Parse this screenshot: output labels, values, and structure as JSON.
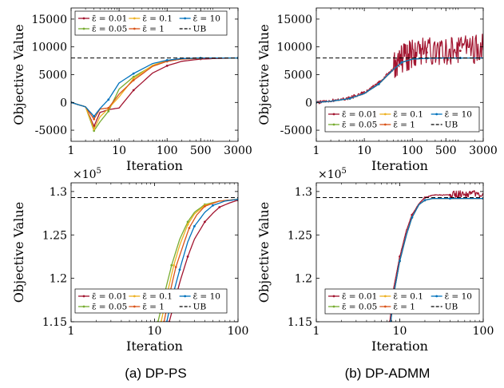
{
  "figure": {
    "captions": [
      "(a) DP-PS",
      "(b) DP-ADMM"
    ]
  },
  "legend_entries": [
    "ε̄ = 0.01",
    "ε̄ = 0.1",
    "ε̄ = 10",
    "ε̄ = 0.05",
    "ε̄ = 1",
    "UB"
  ],
  "colors": {
    "eps_0.01": "#a2142f",
    "eps_0.05": "#77ac30",
    "eps_0.1": "#edb120",
    "eps_1": "#d95319",
    "eps_10": "#0072bd",
    "ub": "#000000"
  },
  "chart_data": [
    {
      "type": "line",
      "panel": "top-left",
      "xlabel": "Iteration",
      "ylabel": "Objective Value",
      "x_scale": "log",
      "xlim": [
        1,
        3000
      ],
      "ylim": [
        -7000,
        17000
      ],
      "xticks": [
        1,
        10,
        100,
        500,
        3000
      ],
      "yticks": [
        -5000,
        0,
        5000,
        10000,
        15000
      ],
      "ytick_labels": [
        "-5000",
        "0",
        "5000",
        "10000",
        "15000"
      ],
      "legend": "top, 3 columns",
      "ub": 8000,
      "series": [
        {
          "name": "ε̄ = 0.01",
          "x": [
            1,
            2,
            3,
            4,
            6,
            10,
            20,
            50,
            100,
            200,
            500,
            1000,
            3000
          ],
          "y": [
            0,
            -800,
            -4300,
            -1800,
            -1300,
            -1000,
            2200,
            5300,
            6600,
            7400,
            7800,
            7900,
            8000
          ]
        },
        {
          "name": "ε̄ = 0.05",
          "x": [
            1,
            2,
            3,
            4,
            6,
            10,
            20,
            50,
            100,
            200,
            500,
            1000,
            3000
          ],
          "y": [
            0,
            -800,
            -5100,
            -3500,
            -1600,
            2400,
            4600,
            6600,
            7400,
            7800,
            7950,
            8000,
            8000
          ]
        },
        {
          "name": "ε̄ = 0.1",
          "x": [
            1,
            2,
            3,
            4,
            6,
            10,
            20,
            50,
            100,
            200,
            500,
            1000,
            3000
          ],
          "y": [
            0,
            -800,
            -4800,
            -2600,
            -1100,
            1000,
            4300,
            6700,
            7500,
            7800,
            7950,
            8000,
            8000
          ]
        },
        {
          "name": "ε̄ = 1",
          "x": [
            1,
            2,
            3,
            4,
            6,
            10,
            20,
            50,
            100,
            200,
            500,
            1000,
            3000
          ],
          "y": [
            0,
            -800,
            -3000,
            -1200,
            -1000,
            1500,
            4000,
            6500,
            7400,
            7800,
            7950,
            8000,
            8000
          ]
        },
        {
          "name": "ε̄ = 10",
          "x": [
            1,
            2,
            3,
            4,
            6,
            10,
            20,
            50,
            100,
            200,
            500,
            1000,
            3000
          ],
          "y": [
            0,
            -800,
            -2500,
            -1100,
            500,
            3500,
            5200,
            7000,
            7600,
            7900,
            8000,
            8000,
            8000
          ]
        }
      ]
    },
    {
      "type": "line",
      "panel": "top-right",
      "xlabel": "Iteration",
      "ylabel": "Objective Value",
      "x_scale": "log",
      "xlim": [
        1,
        3000
      ],
      "ylim": [
        -7000,
        17000
      ],
      "xticks": [
        1,
        10,
        100,
        500,
        3000
      ],
      "yticks": [
        -5000,
        0,
        5000,
        10000,
        15000
      ],
      "ytick_labels": [
        "-5000",
        "0",
        "5000",
        "10000",
        "15000"
      ],
      "legend": "bottom, 3 columns",
      "ub": 8000,
      "series": [
        {
          "name": "ε̄ = 0.01",
          "x": [
            1,
            2,
            5,
            10,
            20,
            40,
            60,
            100,
            200,
            500,
            1000,
            3000
          ],
          "y": [
            0,
            300,
            800,
            1800,
            3500,
            6000,
            7500,
            8500,
            9000,
            9200,
            9300,
            9400
          ],
          "noise": 2400
        },
        {
          "name": "ε̄ = 0.05",
          "x": [
            1,
            2,
            5,
            10,
            20,
            40,
            60,
            100,
            200,
            500,
            1000,
            3000
          ],
          "y": [
            0,
            200,
            700,
            1600,
            3300,
            5900,
            7200,
            7800,
            7950,
            8000,
            8000,
            8000
          ]
        },
        {
          "name": "ε̄ = 0.1",
          "x": [
            1,
            2,
            5,
            10,
            20,
            40,
            60,
            100,
            200,
            500,
            1000,
            3000
          ],
          "y": [
            0,
            200,
            700,
            1600,
            3300,
            5900,
            7200,
            7800,
            7950,
            8000,
            8000,
            8000
          ]
        },
        {
          "name": "ε̄ = 1",
          "x": [
            1,
            2,
            5,
            10,
            20,
            40,
            60,
            100,
            200,
            500,
            1000,
            3000
          ],
          "y": [
            0,
            200,
            700,
            1600,
            3300,
            5900,
            7200,
            7800,
            7950,
            8000,
            8000,
            8000
          ]
        },
        {
          "name": "ε̄ = 10",
          "x": [
            1,
            2,
            5,
            10,
            20,
            40,
            60,
            100,
            200,
            500,
            1000,
            3000
          ],
          "y": [
            0,
            200,
            700,
            1600,
            3300,
            5900,
            7200,
            7800,
            7950,
            8000,
            8000,
            8000
          ]
        }
      ]
    },
    {
      "type": "line",
      "panel": "bottom-left",
      "xlabel": "Iteration",
      "ylabel": "Objective Value",
      "x_scale": "log",
      "xlim": [
        1,
        100
      ],
      "ylim": [
        115000,
        131000
      ],
      "xticks": [
        1,
        10,
        100
      ],
      "yticks": [
        115000,
        120000,
        125000,
        130000
      ],
      "ytick_labels": [
        "1.15",
        "1.2",
        "1.25",
        "1.3"
      ],
      "y_multiplier": "×10",
      "y_exponent": "5",
      "legend": "bottom, 3 columns",
      "ub": 129300,
      "series": [
        {
          "name": "ε̄ = 0.01",
          "x": [
            15,
            20,
            25,
            30,
            40,
            50,
            60,
            80,
            100
          ],
          "y": [
            115000,
            119500,
            122500,
            124500,
            126500,
            127500,
            128200,
            128700,
            129000
          ]
        },
        {
          "name": "ε̄ = 0.05",
          "x": [
            11,
            13,
            16,
            20,
            25,
            30,
            40,
            60,
            100
          ],
          "y": [
            115000,
            118000,
            121500,
            124500,
            126500,
            127600,
            128500,
            128900,
            129100
          ]
        },
        {
          "name": "ε̄ = 0.1",
          "x": [
            12,
            14,
            17,
            20,
            25,
            30,
            40,
            60,
            100
          ],
          "y": [
            115000,
            118000,
            121500,
            123800,
            126200,
            127400,
            128400,
            128900,
            129100
          ]
        },
        {
          "name": "ε̄ = 1",
          "x": [
            13,
            15,
            18,
            22,
            26,
            32,
            40,
            60,
            100
          ],
          "y": [
            115000,
            118000,
            121300,
            123800,
            125800,
            127300,
            128300,
            128900,
            129100
          ]
        },
        {
          "name": "ε̄ = 10",
          "x": [
            14,
            16,
            20,
            25,
            30,
            40,
            50,
            70,
            100
          ],
          "y": [
            115000,
            117500,
            121000,
            124200,
            126000,
            127600,
            128400,
            128900,
            129100
          ]
        }
      ]
    },
    {
      "type": "line",
      "panel": "bottom-right",
      "xlabel": "Iteration",
      "ylabel": "Objective Value",
      "x_scale": "log",
      "xlim": [
        1,
        100
      ],
      "ylim": [
        115000,
        131000
      ],
      "xticks": [
        1,
        10,
        100
      ],
      "yticks": [
        115000,
        120000,
        125000,
        130000
      ],
      "ytick_labels": [
        "1.15",
        "1.2",
        "1.25",
        "1.3"
      ],
      "y_multiplier": "×10",
      "y_exponent": "5",
      "legend": "bottom, 3 columns",
      "ub": 129300,
      "series": [
        {
          "name": "ε̄ = 0.01",
          "x": [
            7.6,
            8.5,
            10,
            12,
            14,
            17,
            20,
            25,
            40,
            60,
            100
          ],
          "y": [
            115000,
            119000,
            122500,
            125500,
            127300,
            128600,
            129300,
            129600,
            129600,
            129700,
            129700
          ],
          "noise": 350
        },
        {
          "name": "ε̄ = 0.05",
          "x": [
            7.8,
            8.7,
            10,
            12,
            14,
            17,
            20,
            25,
            40,
            60,
            100
          ],
          "y": [
            115000,
            118800,
            122000,
            125000,
            127000,
            128500,
            129000,
            129200,
            129200,
            129200,
            129200
          ]
        },
        {
          "name": "ε̄ = 0.1",
          "x": [
            7.8,
            8.7,
            10,
            12,
            14,
            17,
            20,
            25,
            40,
            60,
            100
          ],
          "y": [
            115000,
            118800,
            122000,
            125000,
            127000,
            128500,
            129000,
            129200,
            129200,
            129200,
            129200
          ]
        },
        {
          "name": "ε̄ = 1",
          "x": [
            7.8,
            8.7,
            10,
            12,
            14,
            17,
            20,
            25,
            40,
            60,
            100
          ],
          "y": [
            115000,
            118800,
            122000,
            125000,
            127000,
            128500,
            129000,
            129200,
            129200,
            129200,
            129200
          ]
        },
        {
          "name": "ε̄ = 10",
          "x": [
            7.8,
            8.7,
            10,
            12,
            14,
            17,
            20,
            25,
            40,
            60,
            100
          ],
          "y": [
            115000,
            118800,
            122000,
            125000,
            127000,
            128500,
            129000,
            129200,
            129200,
            129200,
            129200
          ]
        }
      ]
    }
  ]
}
